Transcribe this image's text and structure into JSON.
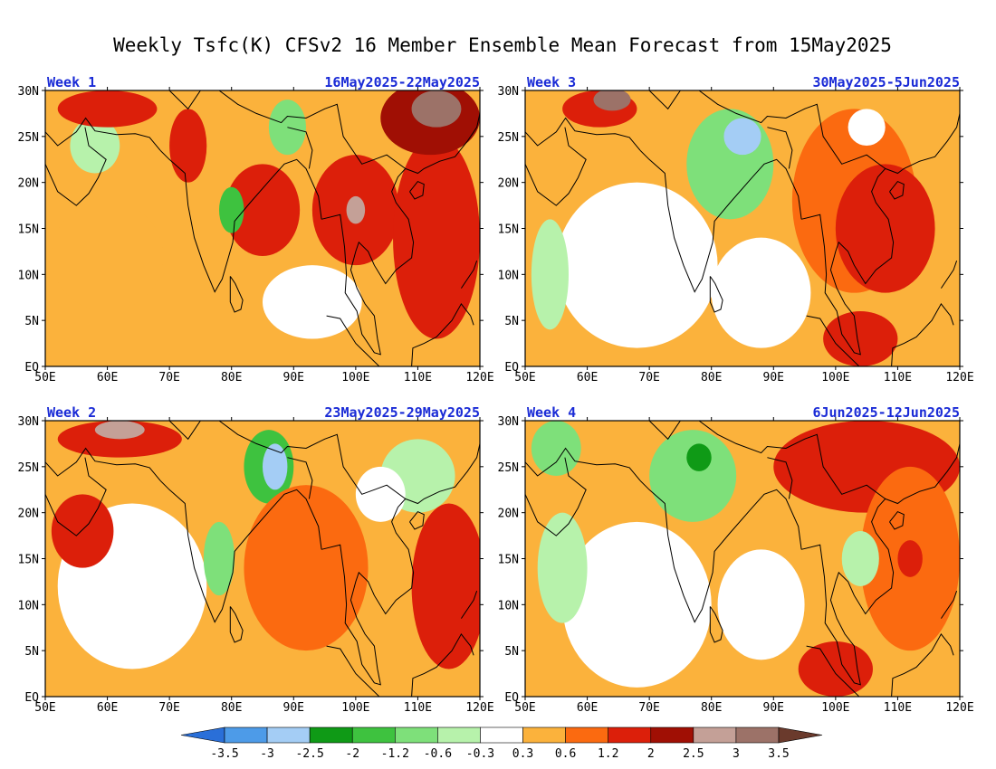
{
  "title": "Weekly Tsfc(K) CFSv2 16 Member Ensemble Mean Forecast from 15May2025",
  "axes": {
    "lon_labels": [
      "50E",
      "60E",
      "70E",
      "80E",
      "90E",
      "100E",
      "110E",
      "120E"
    ],
    "lat_labels": [
      "EQ",
      "5N",
      "10N",
      "15N",
      "20N",
      "25N",
      "30N"
    ],
    "lon_range": [
      50,
      120
    ],
    "lat_range": [
      0,
      30
    ]
  },
  "panels": [
    {
      "id": "week1",
      "week_label": "Week 1",
      "date_label": "16May2025-22May2025",
      "regions": [
        {
          "lon": 60,
          "lat": 12,
          "rx": 9,
          "ry": 6,
          "v": 0.45
        },
        {
          "lon": 58,
          "lat": 24,
          "rx": 4,
          "ry": 3,
          "v": -0.45
        },
        {
          "lon": 93,
          "lat": 7,
          "rx": 8,
          "ry": 4,
          "v": 0.2
        },
        {
          "lon": 85,
          "lat": 17,
          "rx": 6,
          "ry": 5,
          "v": 1.4
        },
        {
          "lon": 100,
          "lat": 17,
          "rx": 7,
          "ry": 6,
          "v": 1.6
        },
        {
          "lon": 113,
          "lat": 14,
          "rx": 7,
          "ry": 11,
          "v": 1.5
        },
        {
          "lon": 112,
          "lat": 27,
          "rx": 8,
          "ry": 4,
          "v": 2.2
        },
        {
          "lon": 113,
          "lat": 28,
          "rx": 4,
          "ry": 2,
          "v": 3.1
        },
        {
          "lon": 80,
          "lat": 17,
          "rx": 2,
          "ry": 2.5,
          "v": -1.4
        },
        {
          "lon": 89,
          "lat": 26,
          "rx": 3,
          "ry": 3,
          "v": -0.8
        },
        {
          "lon": 73,
          "lat": 24,
          "rx": 3,
          "ry": 4,
          "v": 1.3
        },
        {
          "lon": 60,
          "lat": 28,
          "rx": 8,
          "ry": 2,
          "v": 1.5
        },
        {
          "lon": 100,
          "lat": 17,
          "rx": 1.5,
          "ry": 1.5,
          "v": 2.7
        }
      ]
    },
    {
      "id": "week3",
      "week_label": "Week 3",
      "date_label": "30May2025-5Jun2025",
      "regions": [
        {
          "lon": 68,
          "lat": 11,
          "rx": 13,
          "ry": 9,
          "v": 0.0
        },
        {
          "lon": 54,
          "lat": 10,
          "rx": 3,
          "ry": 6,
          "v": -0.5
        },
        {
          "lon": 83,
          "lat": 22,
          "rx": 7,
          "ry": 6,
          "v": -0.9
        },
        {
          "lon": 85,
          "lat": 25,
          "rx": 3,
          "ry": 2,
          "v": -3.0
        },
        {
          "lon": 103,
          "lat": 18,
          "rx": 10,
          "ry": 10,
          "v": 0.8
        },
        {
          "lon": 108,
          "lat": 15,
          "rx": 8,
          "ry": 7,
          "v": 1.3
        },
        {
          "lon": 62,
          "lat": 28,
          "rx": 6,
          "ry": 2,
          "v": 1.6
        },
        {
          "lon": 64,
          "lat": 29,
          "rx": 3,
          "ry": 1.2,
          "v": 3.0
        },
        {
          "lon": 104,
          "lat": 3,
          "rx": 6,
          "ry": 3,
          "v": 1.5
        },
        {
          "lon": 88,
          "lat": 8,
          "rx": 8,
          "ry": 6,
          "v": 0.0
        },
        {
          "lon": 105,
          "lat": 26,
          "rx": 3,
          "ry": 2,
          "v": 0.1
        }
      ]
    },
    {
      "id": "week2",
      "week_label": "Week 2",
      "date_label": "23May2025-29May2025",
      "regions": [
        {
          "lon": 64,
          "lat": 12,
          "rx": 12,
          "ry": 9,
          "v": 0.0
        },
        {
          "lon": 56,
          "lat": 18,
          "rx": 5,
          "ry": 4,
          "v": 1.4
        },
        {
          "lon": 78,
          "lat": 15,
          "rx": 2.5,
          "ry": 4,
          "v": -0.9
        },
        {
          "lon": 86,
          "lat": 25,
          "rx": 4,
          "ry": 4,
          "v": -1.5
        },
        {
          "lon": 87,
          "lat": 25,
          "rx": 2,
          "ry": 2.5,
          "v": -2.8
        },
        {
          "lon": 92,
          "lat": 14,
          "rx": 10,
          "ry": 9,
          "v": 0.9
        },
        {
          "lon": 115,
          "lat": 12,
          "rx": 6,
          "ry": 9,
          "v": 1.5
        },
        {
          "lon": 110,
          "lat": 24,
          "rx": 6,
          "ry": 4,
          "v": -0.6
        },
        {
          "lon": 62,
          "lat": 28,
          "rx": 10,
          "ry": 2,
          "v": 1.8
        },
        {
          "lon": 62,
          "lat": 29,
          "rx": 4,
          "ry": 1,
          "v": 2.8
        },
        {
          "lon": 104,
          "lat": 22,
          "rx": 4,
          "ry": 3,
          "v": 0.0
        }
      ]
    },
    {
      "id": "week4",
      "week_label": "Week 4",
      "date_label": "6Jun2025-12Jun2025",
      "regions": [
        {
          "lon": 68,
          "lat": 10,
          "rx": 12,
          "ry": 9,
          "v": 0.0
        },
        {
          "lon": 56,
          "lat": 14,
          "rx": 4,
          "ry": 6,
          "v": -0.5
        },
        {
          "lon": 77,
          "lat": 24,
          "rx": 7,
          "ry": 5,
          "v": -0.9
        },
        {
          "lon": 78,
          "lat": 26,
          "rx": 2,
          "ry": 1.5,
          "v": -2.3
        },
        {
          "lon": 105,
          "lat": 25,
          "rx": 15,
          "ry": 5,
          "v": 1.3
        },
        {
          "lon": 112,
          "lat": 15,
          "rx": 8,
          "ry": 10,
          "v": 0.9
        },
        {
          "lon": 112,
          "lat": 15,
          "rx": 2,
          "ry": 2,
          "v": 1.6
        },
        {
          "lon": 88,
          "lat": 10,
          "rx": 7,
          "ry": 6,
          "v": 0.0
        },
        {
          "lon": 100,
          "lat": 3,
          "rx": 6,
          "ry": 3,
          "v": 1.3
        },
        {
          "lon": 104,
          "lat": 15,
          "rx": 3,
          "ry": 3,
          "v": -0.4
        },
        {
          "lon": 55,
          "lat": 27,
          "rx": 4,
          "ry": 3,
          "v": -0.8
        }
      ]
    }
  ],
  "colorbar": {
    "labels": [
      "-3.5",
      "-3",
      "-2.5",
      "-2",
      "-1.2",
      "-0.6",
      "-0.3",
      "0.3",
      "0.6",
      "1.2",
      "2",
      "2.5",
      "3",
      "3.5"
    ],
    "thresholds": [
      -3.5,
      -3,
      -2.5,
      -2,
      -1.2,
      -0.6,
      -0.3,
      0.3,
      0.6,
      1.2,
      2,
      2.5,
      3,
      3.5
    ],
    "colors": [
      "#2a6fd8",
      "#4d9be8",
      "#a4cdf5",
      "#0f9a16",
      "#3ec23f",
      "#7ee07a",
      "#b7f2ab",
      "#ffffff",
      "#fbb23c",
      "#fb6a10",
      "#dc1f0a",
      "#a00f04",
      "#c4a097",
      "#9c7268",
      "#6a3a2c"
    ]
  }
}
